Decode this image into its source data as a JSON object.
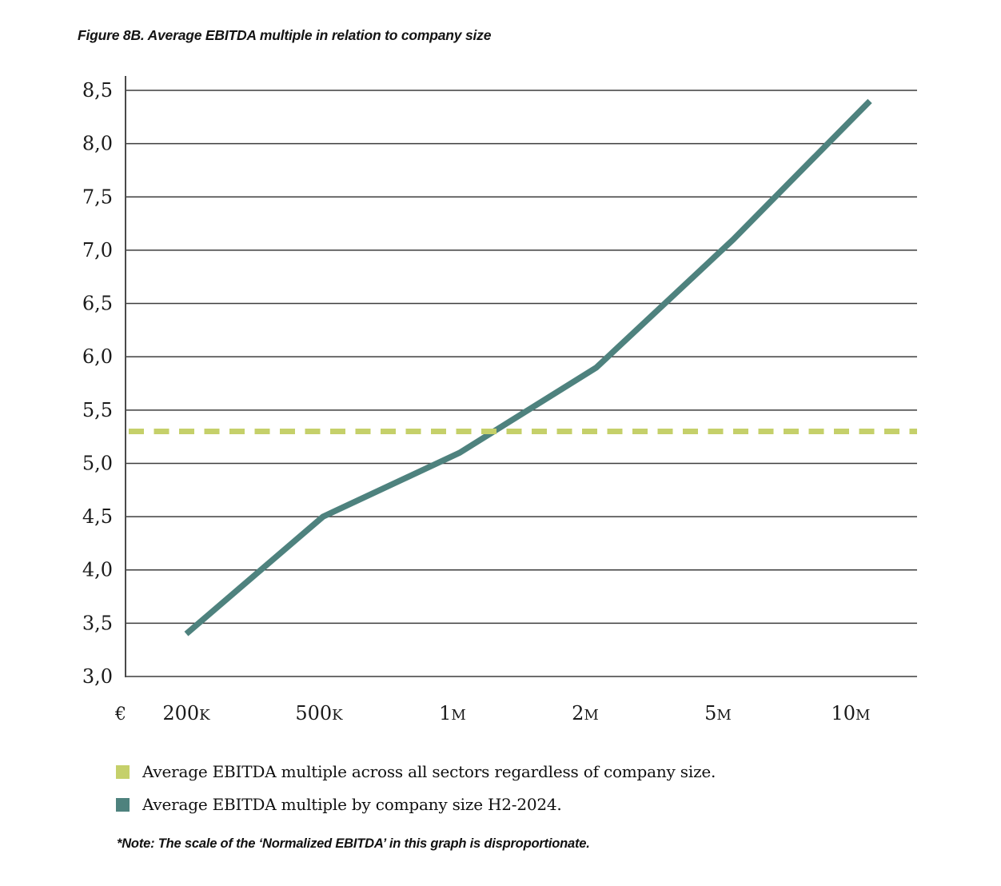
{
  "figure": {
    "title": "Figure 8B. Average EBITDA multiple in relation to company size",
    "note": "*Note: The scale of the ‘Normalized EBITDA’ in this graph is disproportionate."
  },
  "legend": [
    {
      "label": "Average EBITDA multiple across all sectors regardless of company size.",
      "color": "#c5d06a"
    },
    {
      "label": "Average EBITDA multiple by company size H2-2024.",
      "color": "#4e827e"
    }
  ],
  "chart_data": {
    "type": "line",
    "title": "Figure 8B. Average EBITDA multiple in relation to company size",
    "x_axis_prefix": "€",
    "categories": [
      "200K",
      "500K",
      "1M",
      "2M",
      "5M",
      "10M"
    ],
    "series": [
      {
        "name": "Average EBITDA multiple by company size H2-2024.",
        "style": "solid",
        "color": "#4e827e",
        "values": [
          3.4,
          4.5,
          5.1,
          5.9,
          7.1,
          8.4
        ]
      },
      {
        "name": "Average EBITDA multiple across all sectors regardless of company size.",
        "style": "dashed",
        "color": "#c5d06a",
        "values": [
          5.3,
          5.3,
          5.3,
          5.3,
          5.3,
          5.3
        ]
      }
    ],
    "ylim": [
      3.0,
      8.5
    ],
    "ytick_step": 0.5,
    "ytick_labels": [
      "8,5",
      "8,0",
      "7,5",
      "7,0",
      "6,5",
      "6,0",
      "5,5",
      "5,0",
      "4,5",
      "4,0",
      "3,5",
      "3,0"
    ],
    "decimal_separator": ",",
    "grid": "horizontal",
    "legend_position": "bottom"
  }
}
